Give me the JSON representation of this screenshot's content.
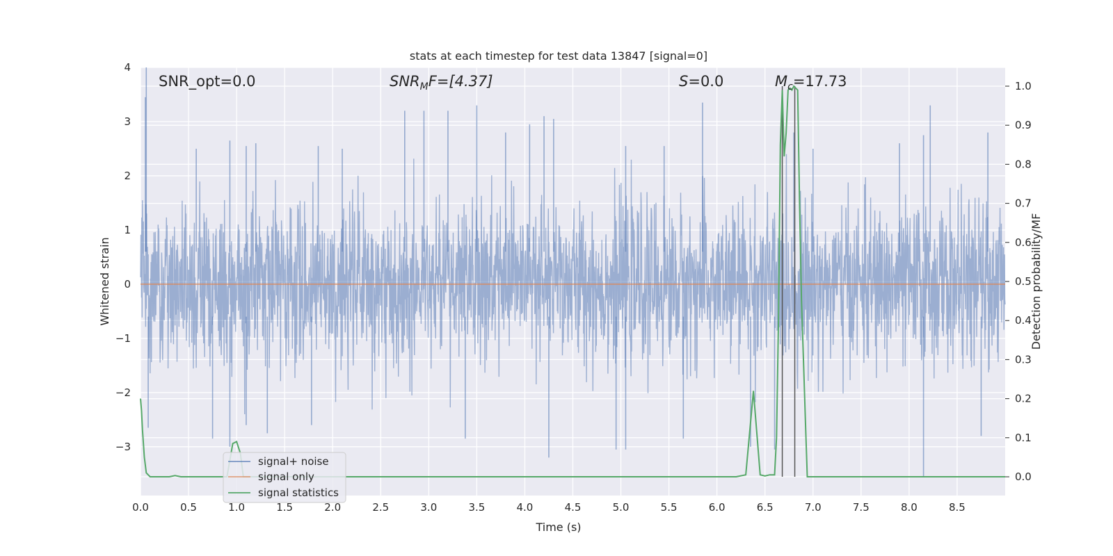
{
  "chart_data": {
    "type": "line",
    "title": "stats at each timestep for test data 13847 [signal=0]",
    "xlabel": "Time (s)",
    "ylabel": "Whitened strain",
    "ylabel_right": "Detection probability/MF",
    "xlim": [
      0.0,
      9.0
    ],
    "ylim": [
      -3.9,
      4.0
    ],
    "ylim_right": [
      -0.048,
      1.048
    ],
    "x_ticks": [
      "0.0",
      "0.5",
      "1.0",
      "1.5",
      "2.0",
      "2.5",
      "3.0",
      "3.5",
      "4.0",
      "4.5",
      "5.0",
      "5.5",
      "6.0",
      "6.5",
      "7.0",
      "7.5",
      "8.0",
      "8.5"
    ],
    "y_ticks": [
      "4",
      "3",
      "2",
      "1",
      "0",
      "−1",
      "−2",
      "−3"
    ],
    "y_ticks_right": [
      "1.0",
      "0.9",
      "0.8",
      "0.7",
      "0.6",
      "0.5",
      "0.4",
      "0.3",
      "0.2",
      "0.1",
      "0.0"
    ],
    "grid": true,
    "legend_position": "lower-left",
    "annotations": {
      "snr_opt": "SNR_opt=0.0",
      "snr_mf_main": "SNR",
      "snr_mf_sub": "M",
      "snr_mf_rest": "F=[4.37]",
      "s_main": "S",
      "s_rest": "=0.0",
      "mc_main": "M",
      "mc_sub": "c",
      "mc_rest": "=17.73"
    },
    "series": [
      {
        "name": "signal+ noise",
        "color": "#4c72b0",
        "axis": "left",
        "style": "dense noise, approx. ±2.5 envelope, peaks to 4.0 and −3.55",
        "spikes_up": [
          [
            0.06,
            4.0
          ],
          [
            0.05,
            3.45
          ],
          [
            0.58,
            2.5
          ],
          [
            0.93,
            2.65
          ],
          [
            1.1,
            2.55
          ],
          [
            1.2,
            2.6
          ],
          [
            1.85,
            2.55
          ],
          [
            2.1,
            2.5
          ],
          [
            2.95,
            3.2
          ],
          [
            2.75,
            3.2
          ],
          [
            3.2,
            3.2
          ],
          [
            3.5,
            3.3
          ],
          [
            3.8,
            2.8
          ],
          [
            4.05,
            2.95
          ],
          [
            4.2,
            3.1
          ],
          [
            4.3,
            3.05
          ],
          [
            5.05,
            2.55
          ],
          [
            5.45,
            2.55
          ],
          [
            5.85,
            3.35
          ],
          [
            6.8,
            2.8
          ],
          [
            7.0,
            2.5
          ],
          [
            7.9,
            2.6
          ],
          [
            8.15,
            2.75
          ],
          [
            8.22,
            3.3
          ],
          [
            8.82,
            2.8
          ]
        ],
        "spikes_down": [
          [
            0.08,
            -2.65
          ],
          [
            0.75,
            -2.85
          ],
          [
            0.93,
            -3.0
          ],
          [
            1.1,
            -2.6
          ],
          [
            1.32,
            -2.75
          ],
          [
            1.78,
            -2.6
          ],
          [
            3.38,
            -2.85
          ],
          [
            4.25,
            -3.2
          ],
          [
            4.95,
            -3.05
          ],
          [
            5.05,
            -3.05
          ],
          [
            5.65,
            -2.85
          ],
          [
            6.35,
            -3.0
          ],
          [
            6.6,
            -3.05
          ],
          [
            8.15,
            -3.55
          ],
          [
            8.75,
            -2.8
          ]
        ]
      },
      {
        "name": "signal only",
        "color": "#dd8452",
        "axis": "left",
        "x": [
          0.0,
          9.0
        ],
        "y": [
          0.0,
          0.0
        ]
      },
      {
        "name": "signal statistics",
        "color": "#55a868",
        "axis": "right",
        "x": [
          0.0,
          0.01,
          0.02,
          0.04,
          0.06,
          0.1,
          0.15,
          0.2,
          0.25,
          0.3,
          0.36,
          0.42,
          0.5,
          0.6,
          0.7,
          0.8,
          0.9,
          0.96,
          1.0,
          1.04,
          1.07,
          1.2,
          1.5,
          2.0,
          3.0,
          4.0,
          5.0,
          6.0,
          6.2,
          6.3,
          6.38,
          6.45,
          6.5,
          6.55,
          6.6,
          6.62,
          6.64,
          6.66,
          6.68,
          6.7,
          6.72,
          6.74,
          6.76,
          6.78,
          6.8,
          6.82,
          6.84,
          6.86,
          6.88,
          6.9,
          6.92,
          6.94,
          7.0,
          7.5,
          8.0,
          8.5,
          9.0
        ],
        "y": [
          0.2,
          0.17,
          0.12,
          0.05,
          0.01,
          0.0,
          0.0,
          0.0,
          0.0,
          0.0,
          0.003,
          0.0,
          0.0,
          0.0,
          0.0,
          0.0,
          0.0,
          0.085,
          0.09,
          0.06,
          0.0,
          0.0,
          0.0,
          0.0,
          0.0,
          0.0,
          0.0,
          0.0,
          0.0,
          0.005,
          0.22,
          0.005,
          0.002,
          0.005,
          0.005,
          0.1,
          0.4,
          0.85,
          0.99,
          0.82,
          0.88,
          0.99,
          0.995,
          0.99,
          1.0,
          0.995,
          0.99,
          0.7,
          0.45,
          0.3,
          0.15,
          0.0,
          0.0,
          0.0,
          0.0,
          0.0,
          0.0
        ]
      }
    ],
    "vertical_lines": [
      6.68,
      6.81
    ]
  },
  "legend": {
    "items": [
      {
        "label": "signal+ noise",
        "color": "#4c72b0"
      },
      {
        "label": "signal only",
        "color": "#dd8452"
      },
      {
        "label": "signal statistics",
        "color": "#55a868"
      }
    ]
  }
}
